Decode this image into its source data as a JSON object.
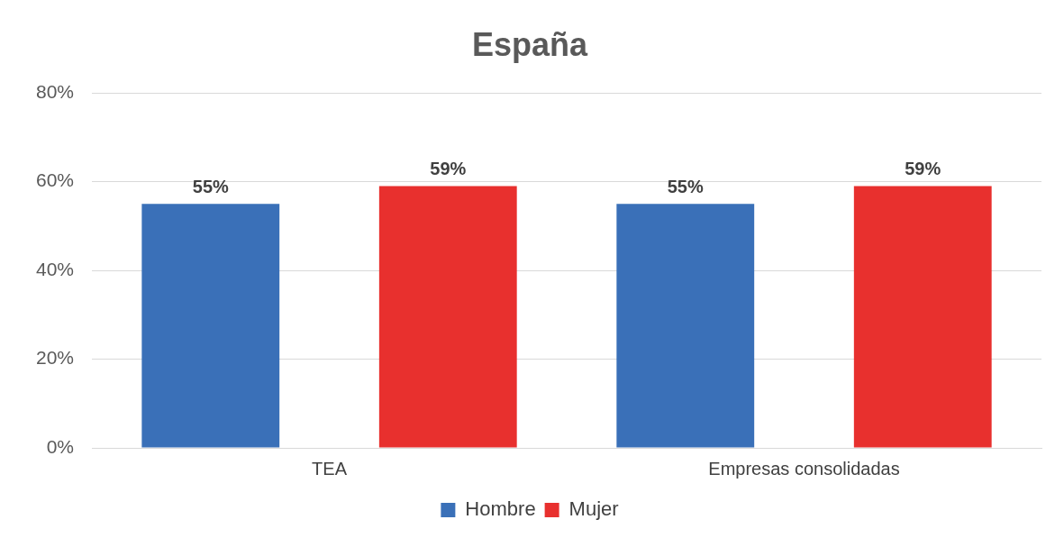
{
  "chart_data": {
    "type": "bar",
    "title": "España",
    "categories": [
      "TEA",
      "Empresas consolidadas"
    ],
    "series": [
      {
        "name": "Hombre",
        "color": "#3a70b8",
        "values": [
          55,
          55
        ],
        "value_labels": [
          "55%",
          "55%"
        ]
      },
      {
        "name": "Mujer",
        "color": "#e8302e",
        "values": [
          59,
          59
        ],
        "value_labels": [
          "59%",
          "59%"
        ]
      }
    ],
    "ylim": [
      0,
      80
    ],
    "yticks": [
      {
        "value": 0,
        "label": "0%"
      },
      {
        "value": 20,
        "label": "20%"
      },
      {
        "value": 40,
        "label": "40%"
      },
      {
        "value": 60,
        "label": "60%"
      },
      {
        "value": 80,
        "label": "80%"
      }
    ],
    "grid": "y",
    "legend": "bottom"
  }
}
